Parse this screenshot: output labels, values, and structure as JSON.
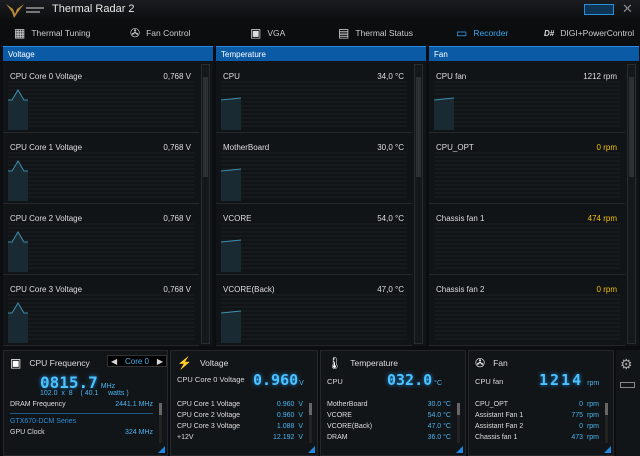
{
  "app": {
    "title": "Thermal Radar 2",
    "close": "✕"
  },
  "tabs": [
    {
      "label": "Thermal Tuning",
      "icon": "motherboard-icon"
    },
    {
      "label": "Fan Control",
      "icon": "fan-icon"
    },
    {
      "label": "VGA",
      "icon": "graphics-card-icon"
    },
    {
      "label": "Thermal Status",
      "icon": "document-icon"
    },
    {
      "label": "Recorder",
      "icon": "monitor-chart-icon",
      "active": true
    },
    {
      "label": "DIGI+PowerControl",
      "icon": "digi-icon"
    }
  ],
  "panels": {
    "voltage": {
      "title": "Voltage",
      "rows": [
        {
          "label": "CPU Core 0 Voltage",
          "value": "0,768 V"
        },
        {
          "label": "CPU Core 1 Voltage",
          "value": "0,768 V"
        },
        {
          "label": "CPU Core 2 Voltage",
          "value": "0,768 V"
        },
        {
          "label": "CPU Core 3 Voltage",
          "value": "0,768 V"
        }
      ]
    },
    "temperature": {
      "title": "Temperature",
      "rows": [
        {
          "label": "CPU",
          "value": "34,0 °C"
        },
        {
          "label": "MotherBoard",
          "value": "30,0 °C"
        },
        {
          "label": "VCORE",
          "value": "54,0 °C"
        },
        {
          "label": "VCORE(Back)",
          "value": "47,0 °C"
        }
      ]
    },
    "fan": {
      "title": "Fan",
      "rows": [
        {
          "label": "CPU fan",
          "value": "1212 rpm"
        },
        {
          "label": "CPU_OPT",
          "value": "0 rpm",
          "warn": true
        },
        {
          "label": "Chassis fan 1",
          "value": "474 rpm",
          "warn": true
        },
        {
          "label": "Chassis fan 2",
          "value": "0 rpm",
          "warn": true
        }
      ]
    }
  },
  "widgets": {
    "cpu_freq": {
      "title": "CPU Frequency",
      "core": "Core 0",
      "value": "0815.7",
      "unit": "MHz",
      "detail": "102.0  x  8    ( 40.1     watts )",
      "dram_label": "DRAM Frequency",
      "dram_value": "2441.1  MHz",
      "gpu_title": "GTX670-DCM Series",
      "gpu_clock_label": "GPU Clock",
      "gpu_clock_value": "324 MHz"
    },
    "voltage": {
      "title": "Voltage",
      "main_label": "CPU Core 0 Voltage",
      "main_value": "0.960",
      "unit": "V",
      "rows": [
        {
          "label": "CPU Core 1 Voltage",
          "value": "0.960  V"
        },
        {
          "label": "CPU Core 2 Voltage",
          "value": "0.960  V"
        },
        {
          "label": "CPU Core 3 Voltage",
          "value": "1.088  V"
        },
        {
          "label": "+12V",
          "value": "12.192  V"
        }
      ]
    },
    "temperature": {
      "title": "Temperature",
      "main_label": "CPU",
      "main_value": "032.0",
      "unit": "°C",
      "rows": [
        {
          "label": "MotherBoard",
          "value": "30.0 °C"
        },
        {
          "label": "VCORE",
          "value": "54.0 °C"
        },
        {
          "label": "VCORE(Back)",
          "value": "47.0 °C"
        },
        {
          "label": "DRAM",
          "value": "36.0 °C"
        }
      ]
    },
    "fan": {
      "title": "Fan",
      "main_label": "CPU fan",
      "main_value": "1214",
      "unit": "rpm",
      "rows": [
        {
          "label": "CPU_OPT",
          "value": "0  rpm"
        },
        {
          "label": "Assistant Fan 1",
          "value": "775  rpm"
        },
        {
          "label": "Assistant Fan 2",
          "value": "0  rpm"
        },
        {
          "label": "Chassis fan 1",
          "value": "473  rpm"
        }
      ]
    }
  },
  "colors": {
    "accent": "#3aa6ee",
    "header": "#0a5aa6",
    "warning": "#f0c000"
  }
}
